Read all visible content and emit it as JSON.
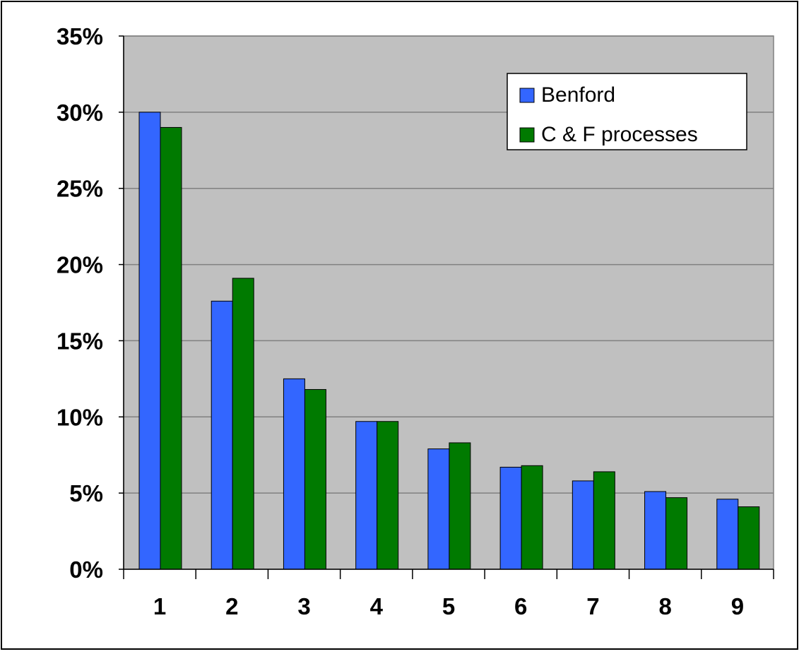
{
  "chart_data": {
    "type": "bar",
    "title": "",
    "xlabel": "",
    "ylabel": "",
    "categories": [
      "1",
      "2",
      "3",
      "4",
      "5",
      "6",
      "7",
      "8",
      "9"
    ],
    "series": [
      {
        "name": "Benford",
        "color": "#3366ff",
        "values": [
          30.0,
          17.6,
          12.5,
          9.7,
          7.9,
          6.7,
          5.8,
          5.1,
          4.6
        ]
      },
      {
        "name": "C & F processes",
        "color": "#007a00",
        "values": [
          29.0,
          19.1,
          11.8,
          9.7,
          8.3,
          6.8,
          6.4,
          4.7,
          4.1
        ]
      }
    ],
    "ylim": [
      0,
      35
    ],
    "yticks": [
      0,
      5,
      10,
      15,
      20,
      25,
      30,
      35
    ],
    "ytick_labels": [
      "0%",
      "5%",
      "10%",
      "15%",
      "20%",
      "25%",
      "30%",
      "35%"
    ],
    "grid": true,
    "legend_position": "top-right",
    "plot_background": "#c0c0c0"
  }
}
